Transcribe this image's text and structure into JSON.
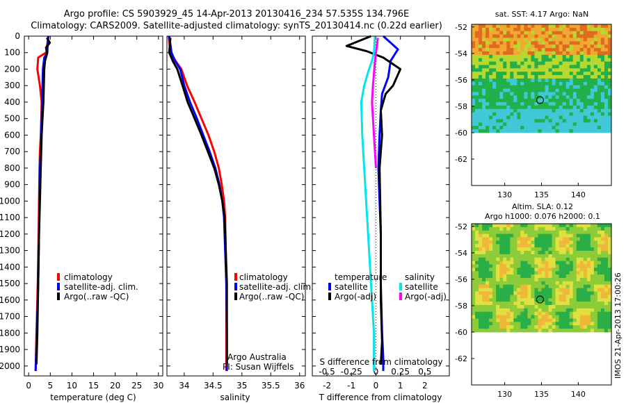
{
  "header": {
    "line1": "Argo profile: CS 5903929_45 14-Apr-2013 20130416_234 57.535S 134.796E",
    "line2": "Climatology: CARS2009. Satellite-adjusted climatology: synTS_20130414.nc (0.22d earlier)"
  },
  "colors": {
    "climatology": "#ff0000",
    "satellite_adj": "#0000ff",
    "argo": "#000000",
    "salinity_satellite": "#00e5ee",
    "salinity_argo": "#ff00ff"
  },
  "chart_data": [
    {
      "id": "temperature",
      "type": "line",
      "xlabel": "temperature (deg C)",
      "ylabel": "",
      "xlim": [
        -1,
        31
      ],
      "ylim": [
        2060,
        0
      ],
      "xticks": [
        0,
        5,
        10,
        15,
        20,
        25,
        30
      ],
      "yticks": [
        0,
        100,
        200,
        300,
        400,
        500,
        600,
        700,
        800,
        900,
        1000,
        1100,
        1200,
        1300,
        1400,
        1500,
        1600,
        1700,
        1800,
        1900,
        2000
      ],
      "legend": {
        "position": "lower-center",
        "entries": [
          "climatology",
          "satellite-adj. clim.",
          "Argo(..raw -QC)"
        ]
      },
      "series": [
        {
          "name": "climatology",
          "color": "#ff0000",
          "x": [
            4.6,
            4.0,
            2.2,
            2.0,
            2.6,
            3.0,
            2.9,
            2.8,
            2.6,
            2.5,
            2.4,
            2.3,
            2.1,
            1.8,
            1.6
          ],
          "y": [
            0,
            100,
            130,
            200,
            300,
            400,
            500,
            600,
            700,
            800,
            1000,
            1200,
            1500,
            1800,
            2030
          ]
        },
        {
          "name": "satellite-adj. clim.",
          "color": "#0000ff",
          "x": [
            4.5,
            4.3,
            3.6,
            3.3,
            3.2,
            3.1,
            3.0,
            2.9,
            2.8,
            2.6,
            2.5,
            2.4,
            2.2,
            1.9,
            1.6
          ],
          "y": [
            0,
            100,
            130,
            200,
            300,
            400,
            500,
            600,
            700,
            800,
            1000,
            1200,
            1500,
            1800,
            2030
          ]
        },
        {
          "name": "Argo(..raw -QC)",
          "color": "#000000",
          "x": [
            4.2,
            4.9,
            4.0,
            4.3,
            3.8,
            3.6,
            3.5,
            3.4,
            3.2,
            3.0,
            2.8,
            2.6,
            2.4,
            2.2,
            2.0,
            1.8
          ],
          "y": [
            10,
            40,
            70,
            100,
            150,
            200,
            300,
            400,
            500,
            600,
            800,
            1000,
            1200,
            1500,
            1800,
            1990
          ]
        }
      ]
    },
    {
      "id": "salinity",
      "type": "line",
      "xlabel": "salinity",
      "ylabel": "",
      "xlim": [
        33.7,
        36.1
      ],
      "ylim": [
        2060,
        0
      ],
      "xticks": [
        34,
        34.5,
        35,
        35.5,
        36
      ],
      "xticklabels": [
        "34",
        "34.5",
        "35",
        "35.5",
        "36"
      ],
      "legend": {
        "position": "lower-center",
        "entries": [
          "climatology",
          "satellite-adj. clim.",
          "Argo(..raw -QC)"
        ]
      },
      "annotation": [
        "Argo Australia",
        "PI: Susan Wijffels"
      ],
      "series": [
        {
          "name": "climatology",
          "color": "#ff0000",
          "x": [
            33.73,
            33.76,
            33.85,
            33.95,
            34.05,
            34.18,
            34.3,
            34.42,
            34.52,
            34.6,
            34.65,
            34.69,
            34.71,
            34.72,
            34.73,
            34.73,
            34.73
          ],
          "y": [
            0,
            100,
            150,
            200,
            300,
            400,
            500,
            600,
            700,
            800,
            900,
            1000,
            1100,
            1300,
            1500,
            1800,
            2030
          ]
        },
        {
          "name": "satellite-adj. clim.",
          "color": "#0000ff",
          "x": [
            33.74,
            33.78,
            33.84,
            33.93,
            34.0,
            34.1,
            34.22,
            34.33,
            34.44,
            34.54,
            34.61,
            34.66,
            34.69,
            34.71,
            34.73,
            34.74,
            34.74
          ],
          "y": [
            0,
            100,
            150,
            200,
            300,
            400,
            500,
            600,
            700,
            800,
            900,
            1000,
            1100,
            1300,
            1500,
            1800,
            2030
          ]
        },
        {
          "name": "Argo(..raw -QC)",
          "color": "#000000",
          "x": [
            33.76,
            33.74,
            33.8,
            33.88,
            33.97,
            34.06,
            34.18,
            34.3,
            34.41,
            34.52,
            34.6,
            34.66,
            34.7,
            34.72,
            34.74,
            34.74
          ],
          "y": [
            10,
            100,
            150,
            200,
            300,
            400,
            500,
            600,
            700,
            800,
            900,
            1000,
            1100,
            1300,
            1500,
            1990
          ]
        }
      ]
    },
    {
      "id": "differences",
      "type": "line",
      "xlabel": "T difference from climatology",
      "ylabel": "",
      "xlim": [
        -2.6,
        3.0
      ],
      "ylim": [
        2060,
        0
      ],
      "xticks": [
        -2,
        -1,
        0,
        1,
        2
      ],
      "secondary_xlabel": "S difference from climatology",
      "secondary_xticks": [
        -0.5,
        -0.25,
        0,
        0.25,
        0.5
      ],
      "secondary_xticklabels": [
        "-0.5",
        "-0.25",
        "0",
        "0.25",
        "0.5"
      ],
      "secondary_xlim": [
        -0.65,
        0.75
      ],
      "legend": {
        "position": "lower-center",
        "headers": [
          "temperature",
          "salinity"
        ],
        "entries": [
          "satellite",
          "Argo(-adj)",
          "satellite",
          "Argo(-adj)"
        ]
      },
      "series": [
        {
          "name": "satellite",
          "group": "temperature",
          "color": "#0000ff",
          "x": [
            0.3,
            0.6,
            0.9,
            0.6,
            0.5,
            0.25,
            0.2,
            0.15,
            0.1,
            0.15,
            0.2,
            0.2,
            0.25,
            0.3,
            0.3
          ],
          "y": [
            0,
            40,
            80,
            150,
            250,
            350,
            450,
            600,
            800,
            1000,
            1200,
            1500,
            1800,
            1950,
            2030
          ]
        },
        {
          "name": "Argo(-adj)",
          "group": "temperature",
          "color": "#000000",
          "x": [
            -0.2,
            -1.2,
            -0.4,
            0.3,
            0.6,
            1.0,
            0.7,
            0.4,
            0.2,
            0.25,
            0.15,
            0.2,
            0.2,
            0.25,
            0.2
          ],
          "y": [
            0,
            60,
            90,
            130,
            160,
            200,
            300,
            350,
            450,
            600,
            800,
            1200,
            1600,
            1850,
            1990
          ]
        },
        {
          "name": "satellite",
          "group": "salinity",
          "color": "#00e5ee",
          "x": [
            -0.01,
            -0.02,
            -0.04,
            -0.07,
            -0.12,
            -0.15,
            -0.14,
            -0.12,
            -0.1,
            -0.08,
            -0.06,
            -0.04,
            -0.02,
            -0.02
          ],
          "y": [
            0,
            100,
            150,
            200,
            300,
            400,
            600,
            800,
            1000,
            1200,
            1400,
            1600,
            1800,
            2030
          ]
        },
        {
          "name": "Argo(-adj)",
          "group": "salinity",
          "color": "#ff00ff",
          "x": [
            0.02,
            -0.01,
            -0.03,
            -0.04,
            -0.03,
            -0.02,
            -0.01,
            0.0
          ],
          "y": [
            10,
            150,
            300,
            400,
            500,
            600,
            700,
            800
          ]
        }
      ]
    },
    {
      "id": "sst-map",
      "type": "heatmap",
      "title": "sat. SST: 4.17 Argo: NaN",
      "xlim": [
        125.5,
        144.5
      ],
      "ylim": [
        -64,
        -51.8
      ],
      "xticks": [
        130,
        135,
        140
      ],
      "yticks": [
        -52,
        -54,
        -56,
        -58,
        -60,
        -62
      ],
      "data_extent_lat": [
        -60,
        -51.8
      ],
      "profile_marker": {
        "lon": 134.8,
        "lat": -57.535
      }
    },
    {
      "id": "sla-map",
      "type": "heatmap",
      "title": "Altim. SLA: 0.12",
      "subtitle": "Argo h1000: 0.076 h2000: 0.1",
      "xlim": [
        125.5,
        144.5
      ],
      "ylim": [
        -64,
        -51.8
      ],
      "xticks": [
        130,
        135,
        140
      ],
      "yticks": [
        -52,
        -54,
        -56,
        -58,
        -60,
        -62
      ],
      "data_extent_lat": [
        -60,
        -51.8
      ],
      "profile_marker": {
        "lon": 134.8,
        "lat": -57.535
      }
    }
  ],
  "legend_labels": {
    "t_clim": "climatology",
    "t_sat": "satellite-adj. clim.",
    "t_argo": "Argo(..raw -QC)",
    "s_clim": "climatology",
    "s_sat": "satellite-adj. clim.",
    "s_argo": "Argo(..raw -QC)",
    "d_temp_header": "temperature",
    "d_sal_header": "salinity",
    "d_temp_sat": "satellite",
    "d_temp_argo": "Argo(-adj)",
    "d_sal_sat": "satellite",
    "d_sal_argo": "Argo(-adj)"
  },
  "credit": "IMOS 21-Apr-2013 17:00:26"
}
